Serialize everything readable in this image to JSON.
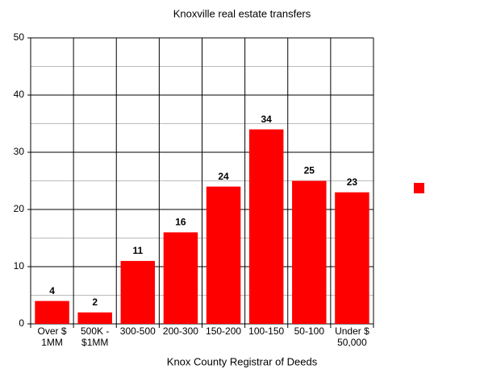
{
  "chart_data": {
    "type": "bar",
    "title": "Knoxville real estate transfers",
    "x_label": "Knox County Registrar of Deeds",
    "categories": [
      "Over $\n1MM",
      "500K -\n$1MM",
      "300-500",
      "200-300",
      "150-200",
      "100-150",
      "50-100",
      "Under $\n50,000"
    ],
    "values": [
      4,
      2,
      11,
      16,
      24,
      34,
      25,
      23
    ],
    "color": "#ff0000",
    "ylim": [
      0,
      50
    ],
    "yticks": [
      0,
      10,
      20,
      30,
      40,
      50
    ],
    "grid": true
  }
}
